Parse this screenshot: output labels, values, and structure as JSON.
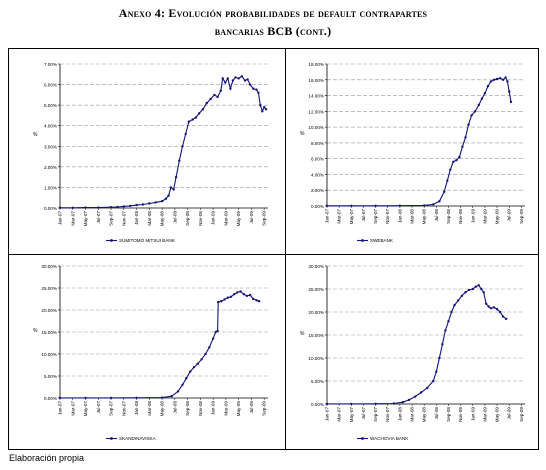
{
  "heading": {
    "line1": "Anexo 4: Evolución probabilidades de default contrapartes",
    "line2": "bancarias BCB (cont.)"
  },
  "footer": "Elaboración propia",
  "colors": {
    "series": "#14147a",
    "grid": "#9a9a9a",
    "axis": "#000000"
  },
  "chart_data": [
    {
      "type": "line",
      "title": "",
      "ylabel": "%",
      "legend": "SUMITOMO MITSUI BANK",
      "legend_position": "bottom",
      "y_ticks": [
        "0.00%",
        "1.00%",
        "2.00%",
        "3.00%",
        "4.00%",
        "5.00%",
        "6.00%",
        "7.00%"
      ],
      "x_ticks": [
        "Jan-07",
        "Mar-07",
        "May-07",
        "Jul-07",
        "Sep-07",
        "Nov-07",
        "Jan-08",
        "Mar-08",
        "May-08",
        "Jul-08",
        "Sep-08",
        "Nov-08",
        "Jan-09",
        "Mar-09",
        "May-09",
        "Jul-09",
        "Sep-09"
      ],
      "ylim": [
        0,
        7
      ],
      "grid": true,
      "points": [
        [
          0,
          0.01
        ],
        [
          2,
          0.01
        ],
        [
          4,
          0.02
        ],
        [
          6,
          0.02
        ],
        [
          8,
          0.04
        ],
        [
          9,
          0.05
        ],
        [
          10,
          0.08
        ],
        [
          11,
          0.1
        ],
        [
          12,
          0.14
        ],
        [
          13,
          0.17
        ],
        [
          14,
          0.22
        ],
        [
          15,
          0.27
        ],
        [
          16,
          0.33
        ],
        [
          16.6,
          0.45
        ],
        [
          17,
          0.6
        ],
        [
          17.4,
          1.0
        ],
        [
          17.8,
          0.9
        ],
        [
          18.2,
          1.5
        ],
        [
          18.7,
          2.3
        ],
        [
          19.2,
          3.0
        ],
        [
          19.7,
          3.6
        ],
        [
          20.2,
          4.2
        ],
        [
          20.8,
          4.3
        ],
        [
          21.3,
          4.4
        ],
        [
          21.8,
          4.6
        ],
        [
          22.4,
          4.8
        ],
        [
          23.0,
          5.1
        ],
        [
          23.6,
          5.3
        ],
        [
          24.2,
          5.5
        ],
        [
          24.7,
          5.4
        ],
        [
          25.2,
          5.7
        ],
        [
          25.5,
          6.3
        ],
        [
          25.9,
          6.1
        ],
        [
          26.3,
          6.3
        ],
        [
          26.7,
          5.8
        ],
        [
          27.1,
          6.2
        ],
        [
          27.5,
          6.35
        ],
        [
          28.0,
          6.3
        ],
        [
          28.5,
          6.4
        ],
        [
          29.0,
          6.2
        ],
        [
          29.4,
          6.25
        ],
        [
          29.8,
          6.0
        ],
        [
          30.3,
          5.8
        ],
        [
          30.8,
          5.75
        ],
        [
          31.1,
          5.6
        ],
        [
          31.4,
          5.0
        ],
        [
          31.7,
          4.7
        ],
        [
          32.0,
          4.9
        ],
        [
          32.3,
          4.8
        ]
      ]
    },
    {
      "type": "line",
      "title": "",
      "ylabel": "%",
      "legend": "SWEBANK",
      "legend_position": "bottom",
      "y_ticks": [
        "0.00%",
        "2.00%",
        "4.00%",
        "6.00%",
        "8.00%",
        "10.00%",
        "12.00%",
        "14.00%",
        "16.00%",
        "18.00%"
      ],
      "x_ticks": [
        "Jan-07",
        "Mar-07",
        "May-07",
        "Jul-07",
        "Sep-07",
        "Nov-07",
        "Jan-08",
        "Mar-08",
        "May-08",
        "Jul-08",
        "Sep-08",
        "Nov-08",
        "Jan-09",
        "Mar-09",
        "May-09",
        "Jul-09",
        "Sep-09"
      ],
      "ylim": [
        0,
        18
      ],
      "grid": true,
      "points": [
        [
          0,
          0.02
        ],
        [
          4,
          0.02
        ],
        [
          8,
          0.03
        ],
        [
          12,
          0.04
        ],
        [
          16,
          0.08
        ],
        [
          17.5,
          0.2
        ],
        [
          18.5,
          0.6
        ],
        [
          19.3,
          1.8
        ],
        [
          19.8,
          3.2
        ],
        [
          20.3,
          4.6
        ],
        [
          20.8,
          5.6
        ],
        [
          21.3,
          5.8
        ],
        [
          21.8,
          6.2
        ],
        [
          22.3,
          7.5
        ],
        [
          22.8,
          8.7
        ],
        [
          23.3,
          10.3
        ],
        [
          23.8,
          11.5
        ],
        [
          24.4,
          12.0
        ],
        [
          25.0,
          12.8
        ],
        [
          25.5,
          13.6
        ],
        [
          26.0,
          14.3
        ],
        [
          26.5,
          15.2
        ],
        [
          27.0,
          15.8
        ],
        [
          27.5,
          16.0
        ],
        [
          28.0,
          16.1
        ],
        [
          28.5,
          16.2
        ],
        [
          29.0,
          16.0
        ],
        [
          29.4,
          16.3
        ],
        [
          29.7,
          15.8
        ],
        [
          30.0,
          14.5
        ],
        [
          30.3,
          13.2
        ]
      ]
    },
    {
      "type": "line",
      "title": "",
      "ylabel": "%",
      "legend": "SKANDINAVISKA",
      "legend_position": "bottom",
      "y_ticks": [
        "0.00%",
        "5.00%",
        "10.00%",
        "15.00%",
        "20.00%",
        "25.00%",
        "30.00%"
      ],
      "x_ticks": [
        "Jan-07",
        "Mar-07",
        "May-07",
        "Jul-07",
        "Sep-07",
        "Nov-07",
        "Jan-08",
        "Mar-08",
        "May-08",
        "Jul-08",
        "Sep-08",
        "Nov-08",
        "Jan-09",
        "Mar-09",
        "May-09",
        "Jul-09",
        "Sep-09"
      ],
      "ylim": [
        0,
        30
      ],
      "grid": true,
      "points": [
        [
          0,
          0.02
        ],
        [
          4,
          0.02
        ],
        [
          8,
          0.03
        ],
        [
          12,
          0.05
        ],
        [
          16,
          0.1
        ],
        [
          17.5,
          0.4
        ],
        [
          18.5,
          1.5
        ],
        [
          19.2,
          3.0
        ],
        [
          19.8,
          4.5
        ],
        [
          20.4,
          6.0
        ],
        [
          21.0,
          7.0
        ],
        [
          21.6,
          7.8
        ],
        [
          22.2,
          8.8
        ],
        [
          22.8,
          10.0
        ],
        [
          23.4,
          11.5
        ],
        [
          24.0,
          13.5
        ],
        [
          24.4,
          15.0
        ],
        [
          24.7,
          15.2
        ],
        [
          24.8,
          21.8
        ],
        [
          25.3,
          22.0
        ],
        [
          25.8,
          22.4
        ],
        [
          26.3,
          22.8
        ],
        [
          26.8,
          23.0
        ],
        [
          27.3,
          23.6
        ],
        [
          27.8,
          24.0
        ],
        [
          28.3,
          24.2
        ],
        [
          28.8,
          23.6
        ],
        [
          29.3,
          23.2
        ],
        [
          29.8,
          23.4
        ],
        [
          30.3,
          22.5
        ],
        [
          30.8,
          22.2
        ],
        [
          31.2,
          22.0
        ]
      ]
    },
    {
      "type": "line",
      "title": "",
      "ylabel": "%",
      "legend": "WACHOVIA BANK",
      "legend_position": "bottom",
      "y_ticks": [
        "0.00%",
        "5.00%",
        "10.00%",
        "15.00%",
        "20.00%",
        "25.00%",
        "30.00%"
      ],
      "x_ticks": [
        "Jan-07",
        "Mar-07",
        "May-07",
        "Jul-07",
        "Sep-07",
        "Nov-07",
        "Jan-08",
        "Mar-08",
        "May-08",
        "Jul-08",
        "Sep-08",
        "Nov-08",
        "Jan-09",
        "Mar-09",
        "May-09",
        "Jul-09",
        "Sep-09"
      ],
      "ylim": [
        0,
        30
      ],
      "grid": true,
      "points": [
        [
          0,
          0.02
        ],
        [
          4,
          0.03
        ],
        [
          8,
          0.05
        ],
        [
          11,
          0.1
        ],
        [
          12.5,
          0.4
        ],
        [
          13.5,
          0.9
        ],
        [
          14.5,
          1.6
        ],
        [
          15.5,
          2.5
        ],
        [
          16.5,
          3.5
        ],
        [
          17.5,
          5.0
        ],
        [
          18.0,
          7.0
        ],
        [
          18.5,
          10.0
        ],
        [
          19.0,
          13.0
        ],
        [
          19.5,
          16.0
        ],
        [
          20.0,
          18.0
        ],
        [
          20.5,
          20.0
        ],
        [
          21.0,
          21.5
        ],
        [
          21.6,
          22.5
        ],
        [
          22.2,
          23.5
        ],
        [
          22.8,
          24.3
        ],
        [
          23.4,
          24.8
        ],
        [
          24.0,
          25.0
        ],
        [
          24.5,
          25.5
        ],
        [
          25.0,
          25.8
        ],
        [
          25.4,
          25.0
        ],
        [
          25.8,
          24.3
        ],
        [
          26.2,
          21.8
        ],
        [
          26.6,
          21.2
        ],
        [
          27.0,
          20.8
        ],
        [
          27.5,
          21.0
        ],
        [
          28.0,
          20.6
        ],
        [
          28.5,
          20.0
        ],
        [
          29.0,
          19.0
        ],
        [
          29.5,
          18.5
        ]
      ]
    }
  ]
}
